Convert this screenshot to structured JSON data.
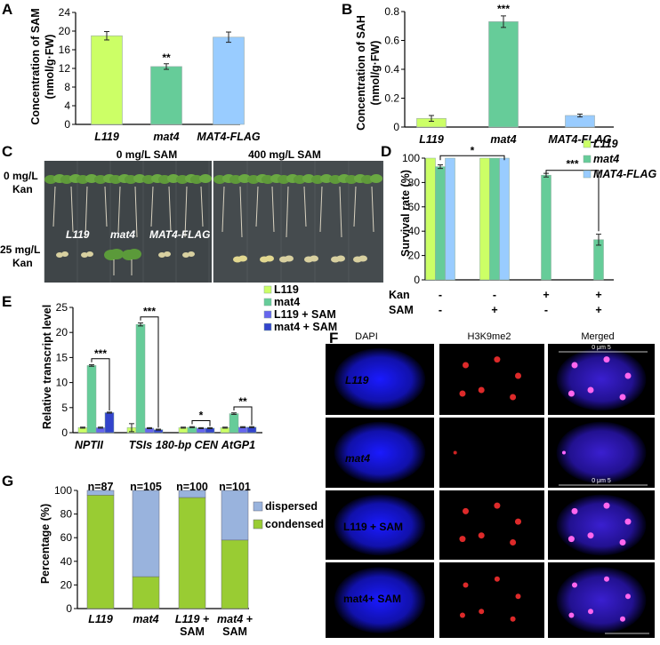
{
  "panel_letters": {
    "a": "A",
    "b": "B",
    "c": "C",
    "d": "D",
    "e": "E",
    "f": "F",
    "g": "G"
  },
  "colors": {
    "L119": "#ccff66",
    "mat4": "#66cc99",
    "MAT4_FLAG": "#99ccff",
    "L119_SAM": "#6666ee",
    "mat4_SAM": "#3344cc",
    "dispersed": "#99b3dd",
    "condensed": "#99cc33"
  },
  "chart_data": [
    {
      "panel": "A",
      "type": "bar",
      "ylabel_line1": "Concentration of SAM",
      "ylabel_line2": "(nmol/g·FW)",
      "ylim": [
        0,
        24
      ],
      "yticks": [
        "0",
        "4",
        "8",
        "12",
        "16",
        "20",
        "24"
      ],
      "categories": [
        "L119",
        "mat4",
        "MAT4-FLAG"
      ],
      "values": [
        19.0,
        12.4,
        18.7
      ],
      "errors": [
        0.9,
        0.6,
        1.1
      ],
      "significance": [
        "",
        "**",
        ""
      ]
    },
    {
      "panel": "B",
      "type": "bar",
      "ylabel_line1": "Concentration of SAH",
      "ylabel_line2": "(nmol/g·FW)",
      "ylim": [
        0,
        0.8
      ],
      "yticks": [
        "0",
        "0.2",
        "0.4",
        "0.6",
        "0.8"
      ],
      "categories": [
        "L119",
        "mat4",
        "MAT4-FLAG"
      ],
      "values": [
        0.06,
        0.73,
        0.08
      ],
      "errors": [
        0.02,
        0.04,
        0.01
      ],
      "significance": [
        "",
        "***",
        ""
      ]
    },
    {
      "panel": "D",
      "type": "bar",
      "ylabel": "Survival  rate (%)",
      "ylim": [
        0,
        100
      ],
      "yticks": [
        "0",
        "20",
        "40",
        "60",
        "80",
        "100"
      ],
      "groups": [
        {
          "kan": "-",
          "sam": "-"
        },
        {
          "kan": "-",
          "sam": "+"
        },
        {
          "kan": "+",
          "sam": "-"
        },
        {
          "kan": "+",
          "sam": "+"
        }
      ],
      "row_labels": {
        "kan": "Kan",
        "sam": "SAM"
      },
      "series": [
        {
          "name": "L119",
          "values": [
            100,
            100,
            0,
            0
          ],
          "errors": [
            0,
            0,
            0,
            0
          ]
        },
        {
          "name": "mat4",
          "values": [
            93,
            100,
            86,
            33
          ],
          "errors": [
            1.5,
            0,
            1.5,
            4.5
          ]
        },
        {
          "name": "MAT4-FLAG",
          "values": [
            100,
            100,
            0,
            0
          ],
          "errors": [
            0,
            0,
            0,
            0
          ]
        }
      ],
      "significance": [
        {
          "label": "*",
          "from_group": 0,
          "to_group": 1
        },
        {
          "label": "***",
          "from_group": 2,
          "to_group": 3
        }
      ]
    },
    {
      "panel": "E",
      "type": "bar",
      "ylabel": "Relative transcript level",
      "ylim": [
        0,
        25
      ],
      "yticks": [
        "0",
        "5",
        "10",
        "15",
        "20",
        "25"
      ],
      "categories": [
        "NPTII",
        "TSIs",
        "180-bp CEN",
        "AtGP1"
      ],
      "series": [
        {
          "name": "L119",
          "values": [
            1.0,
            1.0,
            1.0,
            1.0
          ],
          "errors": [
            0.1,
            0.8,
            0.1,
            0.1
          ]
        },
        {
          "name": "mat4",
          "values": [
            13.4,
            21.6,
            1.1,
            3.8
          ],
          "errors": [
            0.15,
            0.3,
            0.1,
            0.15
          ]
        },
        {
          "name": "L119 + SAM",
          "values": [
            1.0,
            0.9,
            0.9,
            1.1
          ],
          "errors": [
            0.1,
            0.1,
            0.1,
            0.1
          ]
        },
        {
          "name": "mat4 + SAM",
          "values": [
            4.0,
            0.6,
            0.9,
            1.1
          ],
          "errors": [
            0.1,
            0.1,
            0.1,
            0.1
          ]
        }
      ],
      "significance": [
        {
          "label": "***",
          "category": 0
        },
        {
          "label": "***",
          "category": 1
        },
        {
          "label": "*",
          "category": 2
        },
        {
          "label": "**",
          "category": 3
        }
      ]
    },
    {
      "panel": "G",
      "type": "bar",
      "stacked": true,
      "ylabel": "Percentage (%)",
      "ylim": [
        0,
        100
      ],
      "yticks": [
        "0",
        "20",
        "40",
        "60",
        "80",
        "100"
      ],
      "categories": [
        "L119",
        "mat4",
        "L119 + SAM",
        "mat4 + SAM"
      ],
      "n_labels": [
        "n=87",
        "n=105",
        "n=100",
        "n=101"
      ],
      "series": [
        {
          "name": "condensed",
          "values": [
            96,
            27,
            94,
            58
          ]
        },
        {
          "name": "dispersed",
          "values": [
            4,
            73,
            6,
            42
          ]
        }
      ]
    }
  ],
  "panel_c": {
    "headers": [
      "0 mg/L SAM",
      "400 mg/L SAM"
    ],
    "row_label_top_1": "0 mg/L",
    "row_label_top_2": "Kan",
    "row_label_bottom_1": "25 mg/L",
    "row_label_bottom_2": "Kan",
    "genotypes": [
      "L119",
      "mat4",
      "MAT4-FLAG"
    ]
  },
  "panel_f": {
    "columns": [
      "DAPI",
      "H3K9me2",
      "Merged"
    ],
    "rows": [
      "L119",
      "mat4",
      "L119 + SAM",
      "mat4+ SAM"
    ],
    "scale_text": "0    μm    5"
  }
}
